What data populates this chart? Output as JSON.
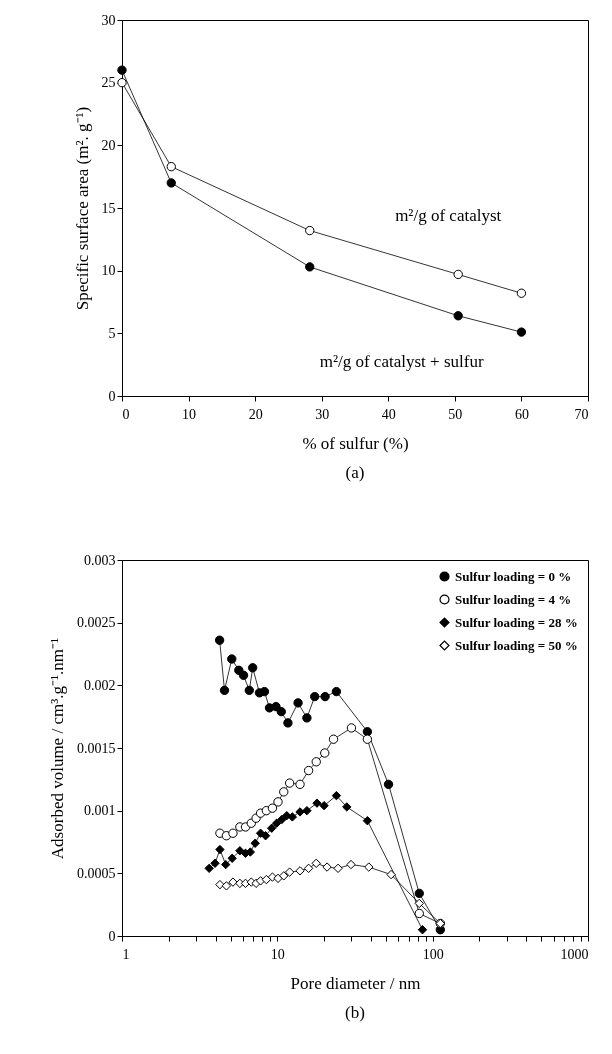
{
  "chart_data": [
    {
      "type": "line",
      "xlabel": "% of sulfur (%)",
      "ylabel": "Specific surface area (m². g⁻¹)",
      "xlim": [
        0,
        70
      ],
      "xticks": [
        0,
        10,
        20,
        30,
        40,
        50,
        60,
        70
      ],
      "ylim": [
        0,
        30
      ],
      "yticks": [
        0,
        5,
        10,
        15,
        20,
        25,
        30
      ],
      "grid": false,
      "legend": false,
      "annotations": [
        "(a)"
      ],
      "series": [
        {
          "name": "m²/g of catalyst",
          "color": "#ffffff",
          "marker": "circle",
          "x": [
            0,
            7.4,
            28.2,
            50.5,
            60
          ],
          "values": [
            25,
            18.3,
            13.2,
            9.7,
            8.2
          ]
        },
        {
          "name": "m²/g of catalyst + sulfur",
          "color": "#000000",
          "marker": "circle",
          "x": [
            0,
            7.4,
            28.2,
            50.5,
            60
          ],
          "values": [
            26,
            17,
            10.3,
            6.4,
            5.1
          ]
        }
      ]
    },
    {
      "type": "line",
      "xlabel": "Pore diameter / nm",
      "ylabel": "Adsorbed volume / cm³.g⁻¹.nm⁻¹",
      "log": "x",
      "xlim": [
        1,
        1000
      ],
      "xticks": [
        1,
        {
          "value": 2,
          "label": null
        },
        {
          "value": 3,
          "label": null
        },
        {
          "value": 4,
          "label": null
        },
        {
          "value": 5,
          "label": null
        },
        {
          "value": 6,
          "label": null
        },
        {
          "value": 7,
          "label": null
        },
        {
          "value": 8,
          "label": null
        },
        {
          "value": 9,
          "label": null
        },
        10,
        {
          "value": 20,
          "label": null
        },
        {
          "value": 30,
          "label": null
        },
        {
          "value": 40,
          "label": null
        },
        {
          "value": 50,
          "label": null
        },
        {
          "value": 60,
          "label": null
        },
        {
          "value": 70,
          "label": null
        },
        {
          "value": 80,
          "label": null
        },
        {
          "value": 90,
          "label": null
        },
        100,
        {
          "value": 200,
          "label": null
        },
        {
          "value": 300,
          "label": null
        },
        {
          "value": 400,
          "label": null
        },
        {
          "value": 500,
          "label": null
        },
        {
          "value": 600,
          "label": null
        },
        {
          "value": 700,
          "label": null
        },
        {
          "value": 800,
          "label": null
        },
        {
          "value": 900,
          "label": null
        },
        1000
      ],
      "ylim": [
        0,
        0.003
      ],
      "yticks": [
        0,
        0.0005,
        0.001,
        0.0015,
        0.002,
        0.0025,
        0.003
      ],
      "grid": false,
      "legend": "top right",
      "annotations": [
        "(b)"
      ],
      "series": [
        {
          "name": "Sulfur loading = 0 %",
          "color": "#000000",
          "marker": "circle",
          "x": [
            4.25,
            4.57,
            5.09,
            5.65,
            6.06,
            6.6,
            6.94,
            7.67,
            8.26,
            8.9,
            9.8,
            10.6,
            11.7,
            13.6,
            15.5,
            17.4,
            20.3,
            24,
            38,
            52,
            82,
            112
          ],
          "values": [
            0.00236,
            0.00196,
            0.00221,
            0.00212,
            0.00208,
            0.00196,
            0.00214,
            0.00194,
            0.00195,
            0.00182,
            0.00183,
            0.00179,
            0.0017,
            0.00186,
            0.00174,
            0.00191,
            0.00191,
            0.00195,
            0.00163,
            0.00121,
            0.00034,
            5e-05
          ]
        },
        {
          "name": "Sulfur loading = 4 %",
          "color": "#ffffff",
          "marker": "circle",
          "x": [
            4.27,
            4.7,
            5.18,
            5.74,
            6.24,
            6.8,
            7.3,
            7.8,
            8.5,
            9.3,
            10.1,
            11,
            12,
            14,
            15.9,
            17.8,
            20.2,
            23,
            30,
            38,
            82,
            112
          ],
          "values": [
            0.00082,
            0.0008,
            0.00082,
            0.00087,
            0.00087,
            0.0009,
            0.00094,
            0.00098,
            0.001,
            0.00102,
            0.00107,
            0.00115,
            0.00122,
            0.00121,
            0.00132,
            0.00139,
            0.00146,
            0.00157,
            0.00166,
            0.00157,
            0.00018,
            0.0001
          ]
        },
        {
          "name": "Sulfur loading = 28 %",
          "color": "#000000",
          "marker": "diamond",
          "x": [
            3.64,
            3.97,
            4.27,
            4.65,
            5.12,
            5.74,
            6.24,
            6.7,
            7.2,
            7.8,
            8.4,
            9.2,
            9.9,
            10.7,
            11.5,
            12.5,
            14,
            15.5,
            18,
            20,
            24,
            28,
            38,
            86
          ],
          "values": [
            0.00054,
            0.00058,
            0.00069,
            0.00057,
            0.00062,
            0.00068,
            0.00066,
            0.00067,
            0.00074,
            0.00082,
            0.0008,
            0.00086,
            0.0009,
            0.00093,
            0.00096,
            0.00095,
            0.00099,
            0.001,
            0.00106,
            0.00104,
            0.00112,
            0.00103,
            0.00092,
            5e-05
          ]
        },
        {
          "name": "Sulfur loading = 50 %",
          "color": "#ffffff",
          "marker": "diamond",
          "x": [
            4.27,
            4.7,
            5.18,
            5.74,
            6.24,
            6.8,
            7.3,
            7.8,
            8.5,
            9.3,
            10.1,
            11,
            12,
            14,
            15.9,
            17.8,
            20.9,
            24.6,
            29.8,
            38.8,
            54,
            82,
            112
          ],
          "values": [
            0.00041,
            0.0004,
            0.00043,
            0.00042,
            0.00042,
            0.00043,
            0.00042,
            0.00044,
            0.00045,
            0.00047,
            0.00046,
            0.00048,
            0.00051,
            0.00052,
            0.00054,
            0.00058,
            0.00055,
            0.00054,
            0.00057,
            0.00055,
            0.00049,
            0.00026,
            0.0001
          ]
        }
      ]
    }
  ]
}
